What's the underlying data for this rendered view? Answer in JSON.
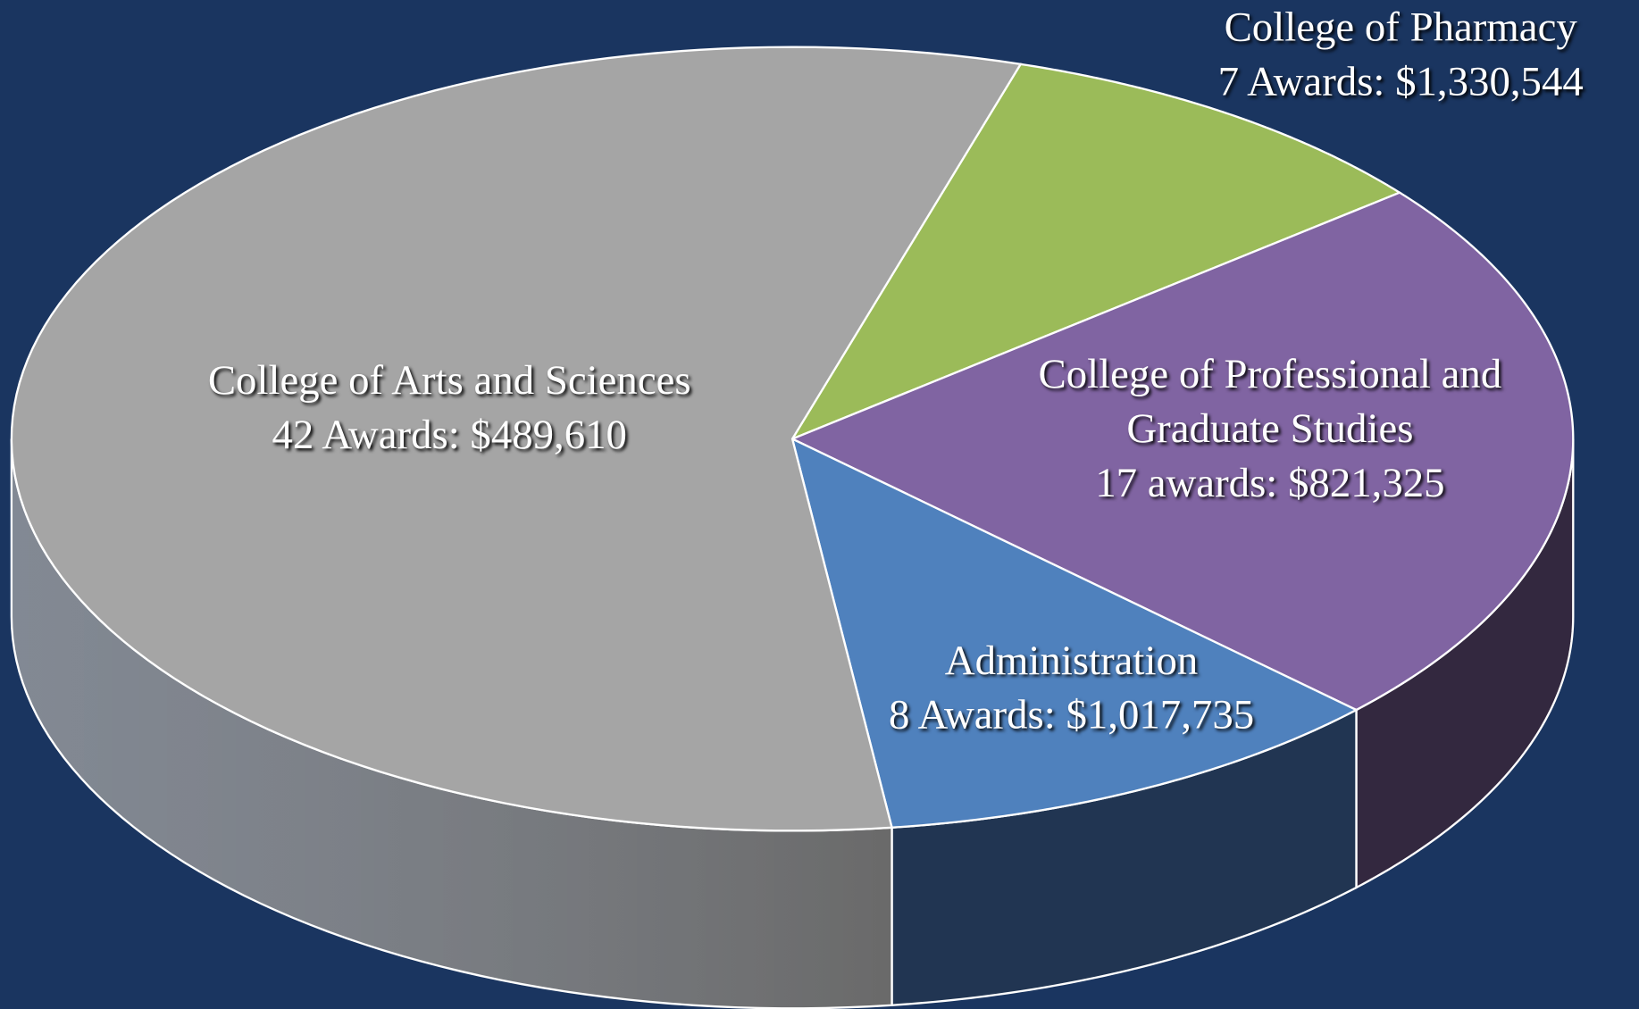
{
  "chart_data": {
    "type": "pie",
    "categories": [
      "College of Pharmacy",
      "College of Professional and Graduate Studies",
      "Administration",
      "College of Arts and Sciences"
    ],
    "values": [
      7,
      17,
      8,
      42
    ],
    "value_labels": [
      "7 Awards:  $1,330,544",
      "17 awards: $821,325",
      "8 Awards:  $1,017,735",
      "42 Awards:  $489,610"
    ],
    "colors": [
      "#9bbb59",
      "#8064a2",
      "#4f81bd",
      "#a5a5a5"
    ],
    "side_colors": [
      "#5d7035",
      "#33283f",
      "#213552",
      "#6a6a6a"
    ]
  }
}
